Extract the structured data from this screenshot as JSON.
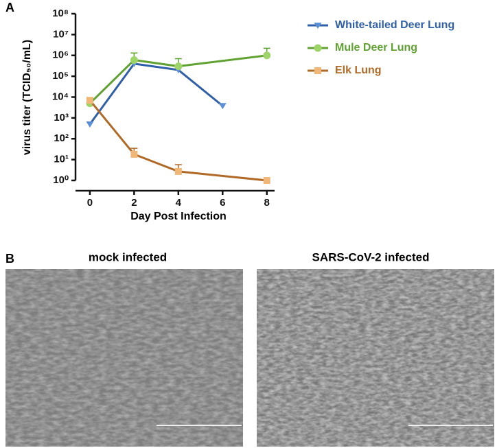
{
  "panel_a_label": "A",
  "panel_b_label": "B",
  "chart_data": {
    "type": "line",
    "x_label": "Day Post Infection",
    "y_label": "virus titer (TCID₅₀/mL)",
    "log_y": true,
    "xlim": [
      -0.65,
      8.35
    ],
    "xticks": [
      0,
      2,
      4,
      6,
      8
    ],
    "ylim": [
      1,
      100000000
    ],
    "yticks": [
      {
        "value": 1,
        "label": "10⁰"
      },
      {
        "value": 10,
        "label": "10¹"
      },
      {
        "value": 100,
        "label": "10²"
      },
      {
        "value": 1000,
        "label": "10³"
      },
      {
        "value": 10000,
        "label": "10⁴"
      },
      {
        "value": 100000,
        "label": "10⁵"
      },
      {
        "value": 1000000,
        "label": "10⁶"
      },
      {
        "value": 10000000,
        "label": "10⁷"
      },
      {
        "value": 100000000,
        "label": "10⁸"
      }
    ],
    "series": [
      {
        "name": "White-tailed Deer Lung",
        "color": "#2e5fa8",
        "marker_color": "#5b8fd6",
        "marker": "triangle-down",
        "x": [
          0,
          2,
          4,
          6
        ],
        "values": [
          500,
          400000,
          200000,
          3800
        ],
        "upper": [
          null,
          null,
          null,
          null
        ]
      },
      {
        "name": "Mule Deer Lung",
        "color": "#5fa232",
        "marker_color": "#9fd468",
        "marker": "circle",
        "x": [
          0,
          2,
          4,
          8
        ],
        "values": [
          5000,
          600000,
          300000,
          1000000
        ],
        "upper": [
          null,
          1300000,
          700000,
          2200000
        ]
      },
      {
        "name": "Elk Lung",
        "color": "#b06a26",
        "marker_color": "#f0b878",
        "marker": "square",
        "x": [
          0,
          2,
          4,
          8
        ],
        "values": [
          7000,
          18,
          2.7,
          1
        ],
        "upper": [
          8500,
          35,
          5.7,
          null
        ]
      }
    ]
  },
  "images": [
    {
      "title": "mock infected"
    },
    {
      "title": "SARS-CoV-2 infected"
    }
  ]
}
